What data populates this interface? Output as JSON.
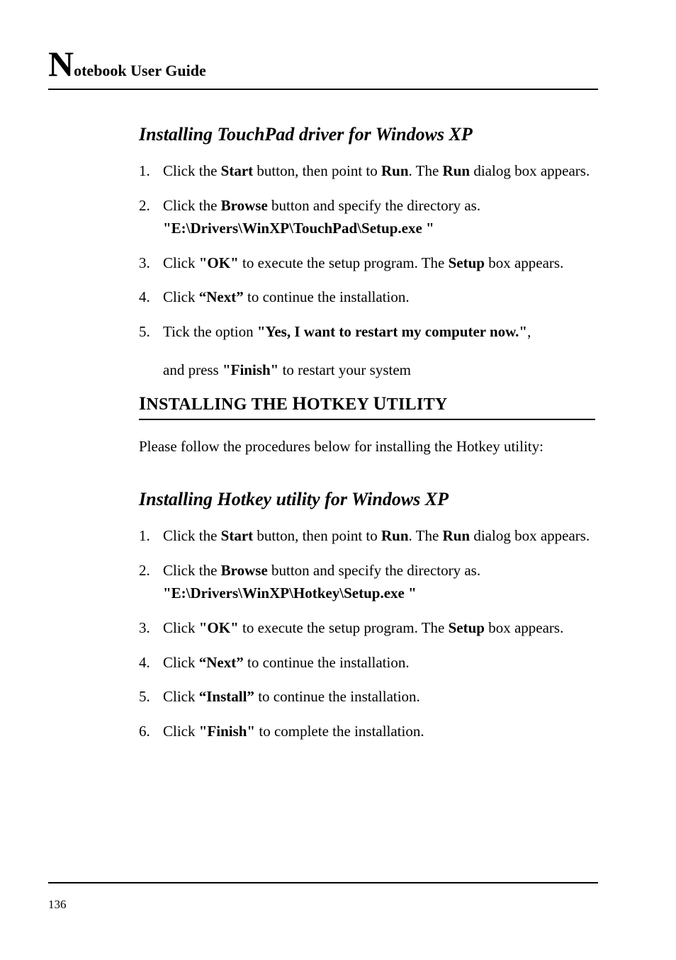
{
  "header": {
    "big_letter": "N",
    "rest": "otebook User Guide"
  },
  "section1": {
    "heading": "Installing TouchPad driver for Windows XP",
    "steps": [
      {
        "pre": "Click the ",
        "b1": "Start",
        "mid1": " button, then point to ",
        "b2": "Run",
        "mid2": ". The ",
        "b3": "Run",
        "post": " dialog box appears."
      },
      {
        "pre": "Click the ",
        "b1": "Browse",
        "mid1": " button and specify the directory as.",
        "line2": "\"E:\\Drivers\\WinXP\\TouchPad\\Setup.exe \""
      },
      {
        "pre": "Click ",
        "b1": "\"OK\"",
        "mid1": " to execute the setup program. The ",
        "b2": "Setup",
        "post": " box appears."
      },
      {
        "pre": "Click ",
        "b1": "“Next”",
        "post": " to continue the installation."
      },
      {
        "pre": "Tick the option ",
        "b1": "\"Yes, I want to restart my computer now.\"",
        "mid1": ",",
        "loose_pre": "and press ",
        "loose_b": "\"Finish\"",
        "loose_post": " to restart your system"
      }
    ]
  },
  "section2": {
    "heading_lead1": "I",
    "heading_rest1": "NSTALLING THE ",
    "heading_lead2": "H",
    "heading_rest2": "OTKEY ",
    "heading_lead3": "U",
    "heading_rest3": "TILITY",
    "intro": "Please follow the procedures below for installing the Hotkey utility:",
    "subheading": "Installing Hotkey utility for Windows XP",
    "steps": [
      {
        "pre": "Click the ",
        "b1": "Start",
        "mid1": " button, then point to ",
        "b2": "Run",
        "mid2": ". The ",
        "b3": "Run",
        "post": " dialog box appears."
      },
      {
        "pre": "Click the ",
        "b1": "Browse",
        "mid1": " button and specify the directory as.",
        "line2": "\"E:\\Drivers\\WinXP\\Hotkey\\Setup.exe \""
      },
      {
        "pre": "Click ",
        "b1": "\"OK\"",
        "mid1": " to execute the setup program. The ",
        "b2": "Setup",
        "post": " box appears."
      },
      {
        "pre": "Click ",
        "b1": "“Next”",
        "post": " to continue the installation."
      },
      {
        "pre": "Click ",
        "b1": "“Install”",
        "post": " to continue the installation."
      },
      {
        "pre": "Click ",
        "b1": "\"Finish\"",
        "post": " to complete the installation."
      }
    ]
  },
  "page_number": "136"
}
